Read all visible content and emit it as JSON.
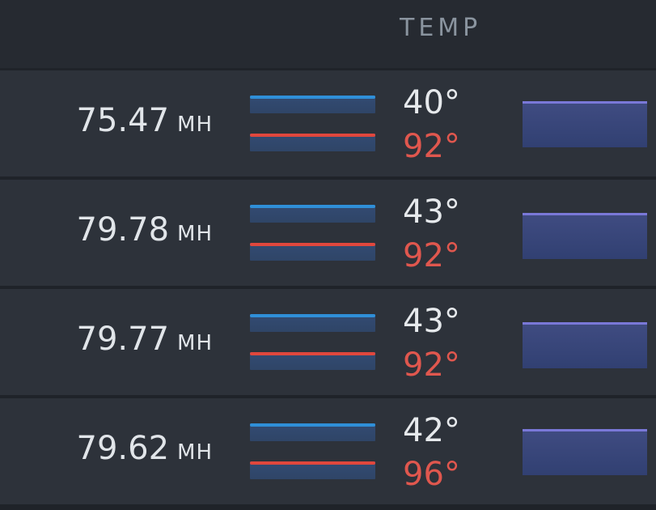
{
  "header": {
    "title": "TEMP"
  },
  "rows": [
    {
      "rate_value": "75.47",
      "rate_unit": "MH",
      "temp_low": "40°",
      "temp_high": "92°"
    },
    {
      "rate_value": "79.78",
      "rate_unit": "MH",
      "temp_low": "43°",
      "temp_high": "92°"
    },
    {
      "rate_value": "79.77",
      "rate_unit": "MH",
      "temp_low": "43°",
      "temp_high": "92°"
    },
    {
      "rate_value": "79.62",
      "rate_unit": "MH",
      "temp_low": "42°",
      "temp_high": "96°"
    }
  ],
  "colors": {
    "background": "#1f2329",
    "row_background": "#2d323a",
    "temp_low": "#e6e9ec",
    "temp_high": "#e0574e",
    "spark_blue": "#2f8fd8",
    "spark_red": "#e0473d",
    "mini_chart_line": "#7a78d8"
  }
}
